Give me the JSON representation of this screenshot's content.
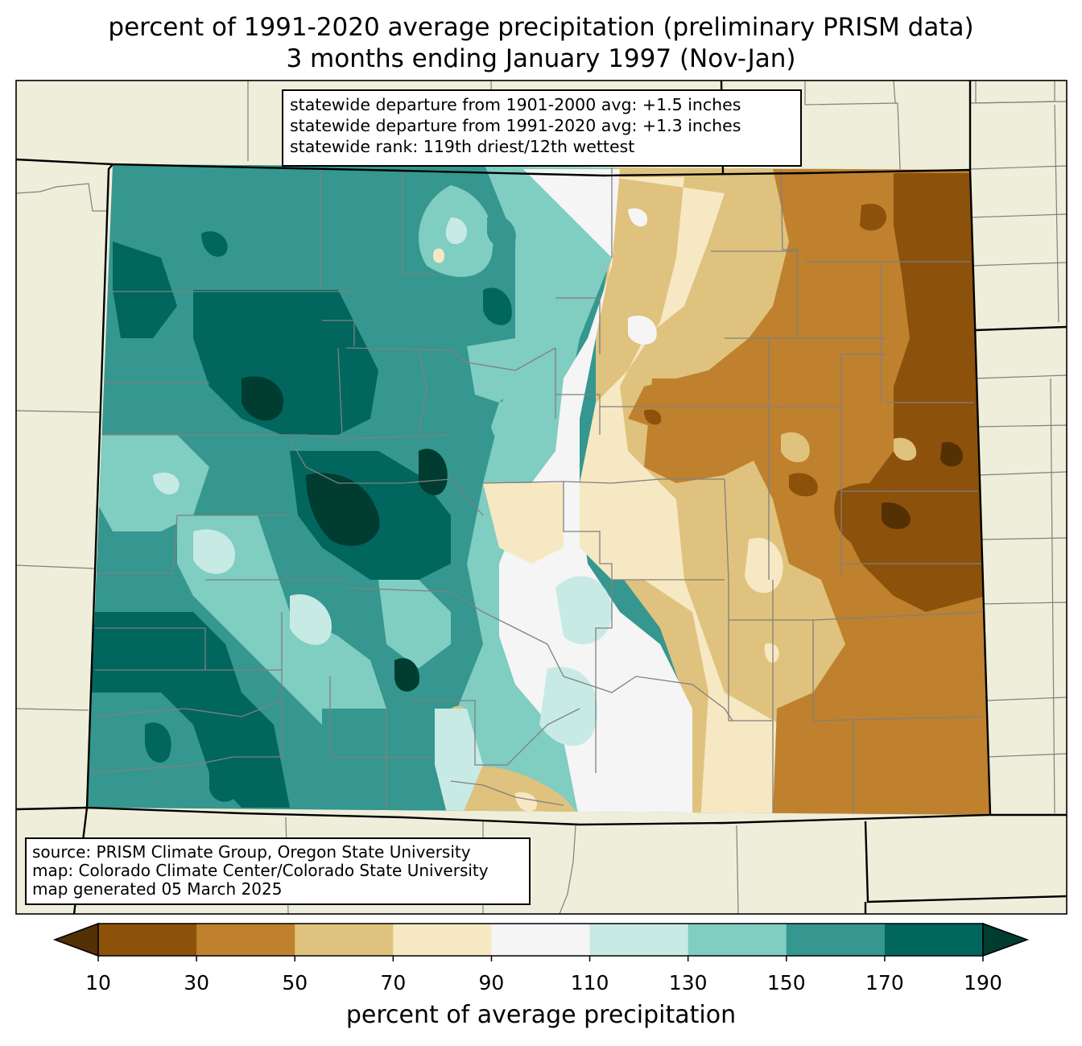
{
  "title": {
    "line1": "percent of 1991-2020 average precipitation (preliminary PRISM data)",
    "line2": "3 months ending January 1997 (Nov-Jan)"
  },
  "stats_box": {
    "line1": "statewide departure from 1901-2000 avg: +1.5 inches",
    "line2": "statewide departure from 1991-2020 avg: +1.3 inches",
    "line3": "statewide rank: 119th driest/12th wettest"
  },
  "source_box": {
    "line1": "source: PRISM Climate Group, Oregon State University",
    "line2": "map: Colorado Climate Center/Colorado State University",
    "line3": "map generated 05 March 2025"
  },
  "colorbar": {
    "label": "percent of average precipitation",
    "ticks": [
      "10",
      "30",
      "50",
      "70",
      "90",
      "110",
      "130",
      "150",
      "170",
      "190"
    ],
    "colors": [
      "#543005",
      "#8c510a",
      "#bf812d",
      "#dfc27d",
      "#f6e8c3",
      "#f5f5f5",
      "#c7eae5",
      "#80cdc1",
      "#35978f",
      "#01665e",
      "#003c30"
    ],
    "bins": [
      "<10",
      "10-30",
      "30-50",
      "50-70",
      "70-90",
      "90-110",
      "110-130",
      "130-150",
      "150-170",
      "170-190",
      ">190"
    ]
  },
  "map_colors": {
    "land": "#efeedb",
    "boundary": "#000000",
    "county_line": "#808080"
  }
}
